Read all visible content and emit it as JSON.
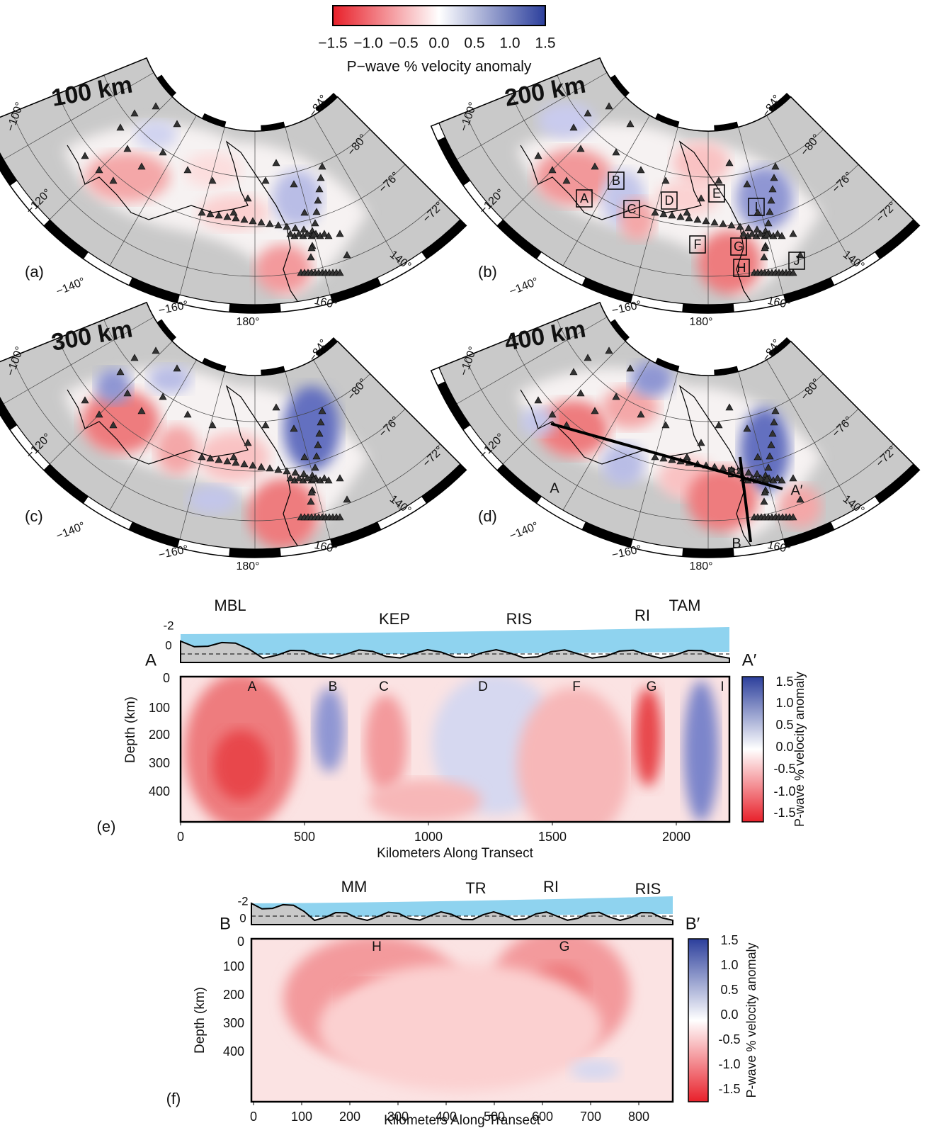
{
  "colorbar": {
    "ticks": [
      "−1.5",
      "−1.0",
      "−0.5",
      "0.0",
      "0.5",
      "1.0",
      "1.5"
    ],
    "label": "P−wave % velocity anomaly"
  },
  "maps": [
    {
      "panel": "(a)",
      "depth": "100 km",
      "lon_labels": [
        "−100°",
        "−120°",
        "−140°",
        "−160°",
        "180°",
        "160°",
        "140°"
      ],
      "lat_labels": [
        "−84°",
        "−80°",
        "−76°",
        "−72°"
      ]
    },
    {
      "panel": "(b)",
      "depth": "200 km",
      "lon_labels": [
        "−100°",
        "−120°",
        "−140°",
        "−160°",
        "180°",
        "160°",
        "140°"
      ],
      "lat_labels": [
        "−84°",
        "−80°",
        "−76°",
        "−72°"
      ],
      "boxes": [
        "A",
        "B",
        "C",
        "D",
        "E",
        "F",
        "G",
        "H",
        "I",
        "J"
      ]
    },
    {
      "panel": "(c)",
      "depth": "300 km",
      "lon_labels": [
        "−100°",
        "−120°",
        "−140°",
        "−160°",
        "180°",
        "160°",
        "140°"
      ],
      "lat_labels": [
        "−84°",
        "−80°",
        "−76°",
        "−72°"
      ]
    },
    {
      "panel": "(d)",
      "depth": "400 km",
      "lon_labels": [
        "−100°",
        "−120°",
        "−140°",
        "−160°",
        "180°",
        "160°",
        "140°"
      ],
      "lat_labels": [
        "−84°",
        "−80°",
        "−76°",
        "−72°"
      ],
      "transects": [
        "A",
        "A′",
        "B",
        "B′"
      ]
    }
  ],
  "sections": [
    {
      "panel": "(e)",
      "start": "A",
      "end": "A′",
      "topo_labels": [
        "MBL",
        "KEP",
        "RIS",
        "RI",
        "TAM"
      ],
      "elev_ticks": [
        "-2",
        "0"
      ],
      "anomaly_labels": [
        "A",
        "B",
        "C",
        "D",
        "F",
        "G",
        "I"
      ],
      "y_label": "Depth (km)",
      "y_ticks": [
        "0",
        "100",
        "200",
        "300",
        "400"
      ],
      "x_ticks": [
        "0",
        "500",
        "1000",
        "1500",
        "2000"
      ],
      "x_label": "Kilometers Along Transect",
      "colorbar_ticks": [
        "1.5",
        "1.0",
        "0.5",
        "0.0",
        "-0.5",
        "-1.0",
        "-1.5"
      ],
      "colorbar_label": "P-wave % velocity anomaly"
    },
    {
      "panel": "(f)",
      "start": "B",
      "end": "B′",
      "topo_labels": [
        "MM",
        "TR",
        "RI",
        "RIS"
      ],
      "elev_ticks": [
        "-2",
        "0"
      ],
      "anomaly_labels": [
        "H",
        "G"
      ],
      "y_label": "Depth (km)",
      "y_ticks": [
        "0",
        "100",
        "200",
        "300",
        "400"
      ],
      "x_ticks": [
        "0",
        "100",
        "200",
        "300",
        "400",
        "500",
        "600",
        "700",
        "800"
      ],
      "x_label": "Kilometers Along Transect",
      "colorbar_ticks": [
        "1.5",
        "1.0",
        "0.5",
        "0.0",
        "-0.5",
        "-1.0",
        "-1.5"
      ],
      "colorbar_label": "P-wave % velocity anomaly"
    }
  ]
}
